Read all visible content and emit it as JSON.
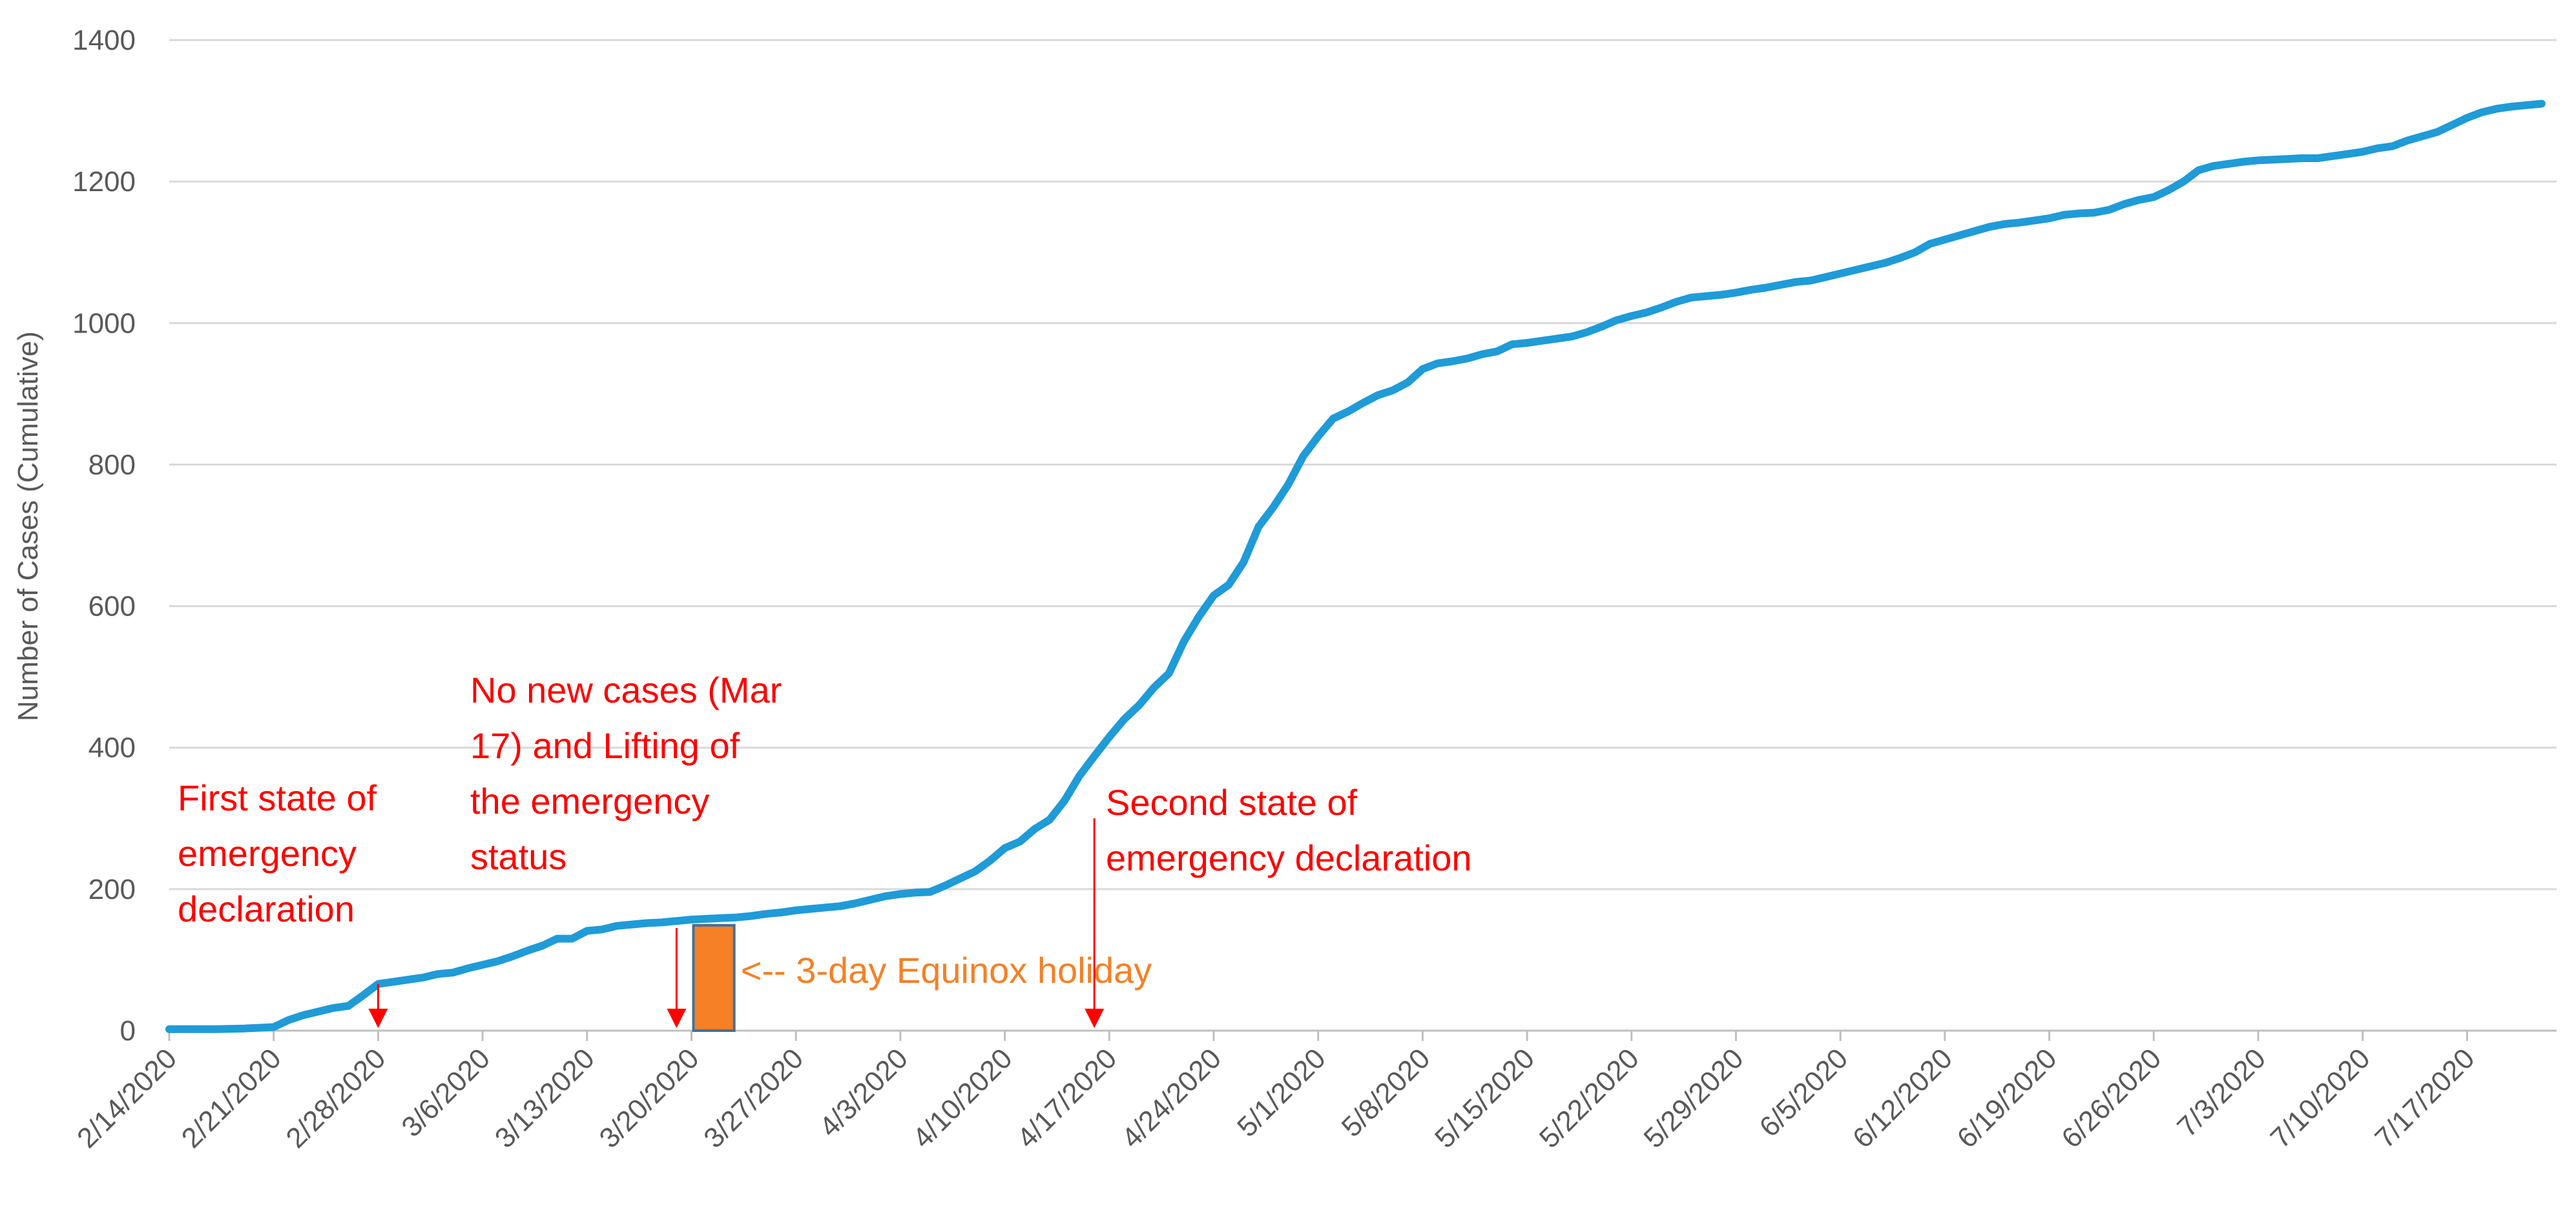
{
  "chart_data": {
    "type": "line",
    "title": "",
    "xlabel": "",
    "ylabel": "Number of Cases (Cumulative)",
    "ylim": [
      0,
      1400
    ],
    "yticks": [
      0,
      200,
      400,
      600,
      800,
      1000,
      1200,
      1400
    ],
    "xlim": [
      "2/14/2020",
      "7/23/2020"
    ],
    "xticks": [
      "2/14/2020",
      "2/21/2020",
      "2/28/2020",
      "3/6/2020",
      "3/13/2020",
      "3/20/2020",
      "3/27/2020",
      "4/3/2020",
      "4/10/2020",
      "4/17/2020",
      "4/24/2020",
      "5/1/2020",
      "5/8/2020",
      "5/15/2020",
      "5/22/2020",
      "5/29/2020",
      "6/5/2020",
      "6/12/2020",
      "6/19/2020",
      "6/26/2020",
      "7/3/2020",
      "7/10/2020",
      "7/17/2020"
    ],
    "grid": true,
    "legend": "none",
    "colors": {
      "line": "#1f9bd7",
      "annotation": "#ff0000",
      "holiday": "#f58025",
      "holiday_text": "#f58025",
      "grid": "#d9d9d9",
      "axis": "#bfbfbf"
    },
    "series": [
      {
        "points": [
          [
            "2/14/2020",
            2
          ],
          [
            "2/17/2020",
            2
          ],
          [
            "2/19/2020",
            3
          ],
          [
            "2/20/2020",
            4
          ],
          [
            "2/21/2020",
            5
          ],
          [
            "2/22/2020",
            15
          ],
          [
            "2/23/2020",
            22
          ],
          [
            "2/24/2020",
            27
          ],
          [
            "2/25/2020",
            32
          ],
          [
            "2/26/2020",
            35
          ],
          [
            "2/27/2020",
            50
          ],
          [
            "2/28/2020",
            66
          ],
          [
            "2/29/2020",
            69
          ],
          [
            "3/1/2020",
            72
          ],
          [
            "3/2/2020",
            75
          ],
          [
            "3/3/2020",
            80
          ],
          [
            "3/4/2020",
            82
          ],
          [
            "3/5/2020",
            88
          ],
          [
            "3/6/2020",
            93
          ],
          [
            "3/7/2020",
            98
          ],
          [
            "3/8/2020",
            105
          ],
          [
            "3/9/2020",
            113
          ],
          [
            "3/10/2020",
            120
          ],
          [
            "3/11/2020",
            130
          ],
          [
            "3/12/2020",
            130
          ],
          [
            "3/13/2020",
            141
          ],
          [
            "3/14/2020",
            143
          ],
          [
            "3/15/2020",
            148
          ],
          [
            "3/16/2020",
            150
          ],
          [
            "3/17/2020",
            152
          ],
          [
            "3/18/2020",
            153
          ],
          [
            "3/19/2020",
            155
          ],
          [
            "3/20/2020",
            157
          ],
          [
            "3/21/2020",
            158
          ],
          [
            "3/22/2020",
            159
          ],
          [
            "3/23/2020",
            160
          ],
          [
            "3/24/2020",
            162
          ],
          [
            "3/25/2020",
            165
          ],
          [
            "3/26/2020",
            167
          ],
          [
            "3/27/2020",
            170
          ],
          [
            "3/28/2020",
            172
          ],
          [
            "3/29/2020",
            174
          ],
          [
            "3/30/2020",
            176
          ],
          [
            "3/31/2020",
            180
          ],
          [
            "4/1/2020",
            185
          ],
          [
            "4/2/2020",
            190
          ],
          [
            "4/3/2020",
            193
          ],
          [
            "4/4/2020",
            195
          ],
          [
            "4/5/2020",
            196
          ],
          [
            "4/6/2020",
            205
          ],
          [
            "4/7/2020",
            215
          ],
          [
            "4/8/2020",
            225
          ],
          [
            "4/9/2020",
            240
          ],
          [
            "4/10/2020",
            258
          ],
          [
            "4/11/2020",
            267
          ],
          [
            "4/12/2020",
            285
          ],
          [
            "4/13/2020",
            298
          ],
          [
            "4/14/2020",
            325
          ],
          [
            "4/15/2020",
            360
          ],
          [
            "4/16/2020",
            388
          ],
          [
            "4/17/2020",
            415
          ],
          [
            "4/18/2020",
            440
          ],
          [
            "4/19/2020",
            460
          ],
          [
            "4/20/2020",
            485
          ],
          [
            "4/21/2020",
            505
          ],
          [
            "4/22/2020",
            550
          ],
          [
            "4/23/2020",
            585
          ],
          [
            "4/24/2020",
            615
          ],
          [
            "4/25/2020",
            630
          ],
          [
            "4/26/2020",
            662
          ],
          [
            "4/27/2020",
            712
          ],
          [
            "4/28/2020",
            740
          ],
          [
            "4/29/2020",
            772
          ],
          [
            "4/30/2020",
            812
          ],
          [
            "5/1/2020",
            840
          ],
          [
            "5/2/2020",
            865
          ],
          [
            "5/3/2020",
            875
          ],
          [
            "5/4/2020",
            887
          ],
          [
            "5/5/2020",
            898
          ],
          [
            "5/6/2020",
            905
          ],
          [
            "5/7/2020",
            916
          ],
          [
            "5/8/2020",
            935
          ],
          [
            "5/9/2020",
            943
          ],
          [
            "5/10/2020",
            946
          ],
          [
            "5/11/2020",
            950
          ],
          [
            "5/12/2020",
            956
          ],
          [
            "5/13/2020",
            960
          ],
          [
            "5/14/2020",
            970
          ],
          [
            "5/15/2020",
            972
          ],
          [
            "5/16/2020",
            975
          ],
          [
            "5/17/2020",
            978
          ],
          [
            "5/18/2020",
            981
          ],
          [
            "5/19/2020",
            987
          ],
          [
            "5/20/2020",
            995
          ],
          [
            "5/21/2020",
            1004
          ],
          [
            "5/22/2020",
            1010
          ],
          [
            "5/23/2020",
            1015
          ],
          [
            "5/24/2020",
            1022
          ],
          [
            "5/25/2020",
            1030
          ],
          [
            "5/26/2020",
            1036
          ],
          [
            "5/27/2020",
            1038
          ],
          [
            "5/28/2020",
            1040
          ],
          [
            "5/29/2020",
            1043
          ],
          [
            "5/30/2020",
            1047
          ],
          [
            "5/31/2020",
            1050
          ],
          [
            "6/1/2020",
            1054
          ],
          [
            "6/2/2020",
            1058
          ],
          [
            "6/3/2020",
            1060
          ],
          [
            "6/4/2020",
            1065
          ],
          [
            "6/5/2020",
            1070
          ],
          [
            "6/6/2020",
            1075
          ],
          [
            "6/7/2020",
            1080
          ],
          [
            "6/8/2020",
            1085
          ],
          [
            "6/9/2020",
            1092
          ],
          [
            "6/10/2020",
            1100
          ],
          [
            "6/11/2020",
            1112
          ],
          [
            "6/12/2020",
            1118
          ],
          [
            "6/13/2020",
            1124
          ],
          [
            "6/14/2020",
            1130
          ],
          [
            "6/15/2020",
            1136
          ],
          [
            "6/16/2020",
            1140
          ],
          [
            "6/17/2020",
            1142
          ],
          [
            "6/18/2020",
            1145
          ],
          [
            "6/19/2020",
            1148
          ],
          [
            "6/20/2020",
            1153
          ],
          [
            "6/21/2020",
            1155
          ],
          [
            "6/22/2020",
            1156
          ],
          [
            "6/23/2020",
            1160
          ],
          [
            "6/24/2020",
            1168
          ],
          [
            "6/25/2020",
            1174
          ],
          [
            "6/26/2020",
            1178
          ],
          [
            "6/27/2020",
            1188
          ],
          [
            "6/28/2020",
            1200
          ],
          [
            "6/29/2020",
            1216
          ],
          [
            "6/30/2020",
            1222
          ],
          [
            "7/1/2020",
            1225
          ],
          [
            "7/2/2020",
            1228
          ],
          [
            "7/3/2020",
            1230
          ],
          [
            "7/4/2020",
            1231
          ],
          [
            "7/5/2020",
            1232
          ],
          [
            "7/6/2020",
            1233
          ],
          [
            "7/7/2020",
            1233
          ],
          [
            "7/8/2020",
            1236
          ],
          [
            "7/9/2020",
            1239
          ],
          [
            "7/10/2020",
            1242
          ],
          [
            "7/11/2020",
            1247
          ],
          [
            "7/12/2020",
            1250
          ],
          [
            "7/13/2020",
            1258
          ],
          [
            "7/14/2020",
            1264
          ],
          [
            "7/15/2020",
            1270
          ],
          [
            "7/16/2020",
            1280
          ],
          [
            "7/17/2020",
            1290
          ],
          [
            "7/18/2020",
            1298
          ],
          [
            "7/19/2020",
            1303
          ],
          [
            "7/20/2020",
            1306
          ],
          [
            "7/21/2020",
            1308
          ],
          [
            "7/22/2020",
            1310
          ]
        ]
      }
    ],
    "annotations": [
      {
        "id": "first",
        "lines": [
          "First state of",
          "emergency",
          "declaration"
        ],
        "arrow_date": "2/28/2020",
        "arrow_from": 66,
        "arrow_to": 0
      },
      {
        "id": "lifting",
        "lines": [
          "No new cases (Mar",
          "17) and Lifting of",
          "the emergency",
          "status"
        ],
        "arrow_date": "3/19/2020",
        "arrow_from": 145,
        "arrow_to": 0
      },
      {
        "id": "second",
        "lines": [
          "Second state of",
          "emergency declaration"
        ],
        "arrow_date": "4/16/2020",
        "arrow_from": 300,
        "arrow_to": 0
      }
    ],
    "holiday": {
      "label": "<-- 3-day Equinox holiday",
      "start": "3/20/2020",
      "end": "3/22/2020",
      "value": 158
    }
  }
}
